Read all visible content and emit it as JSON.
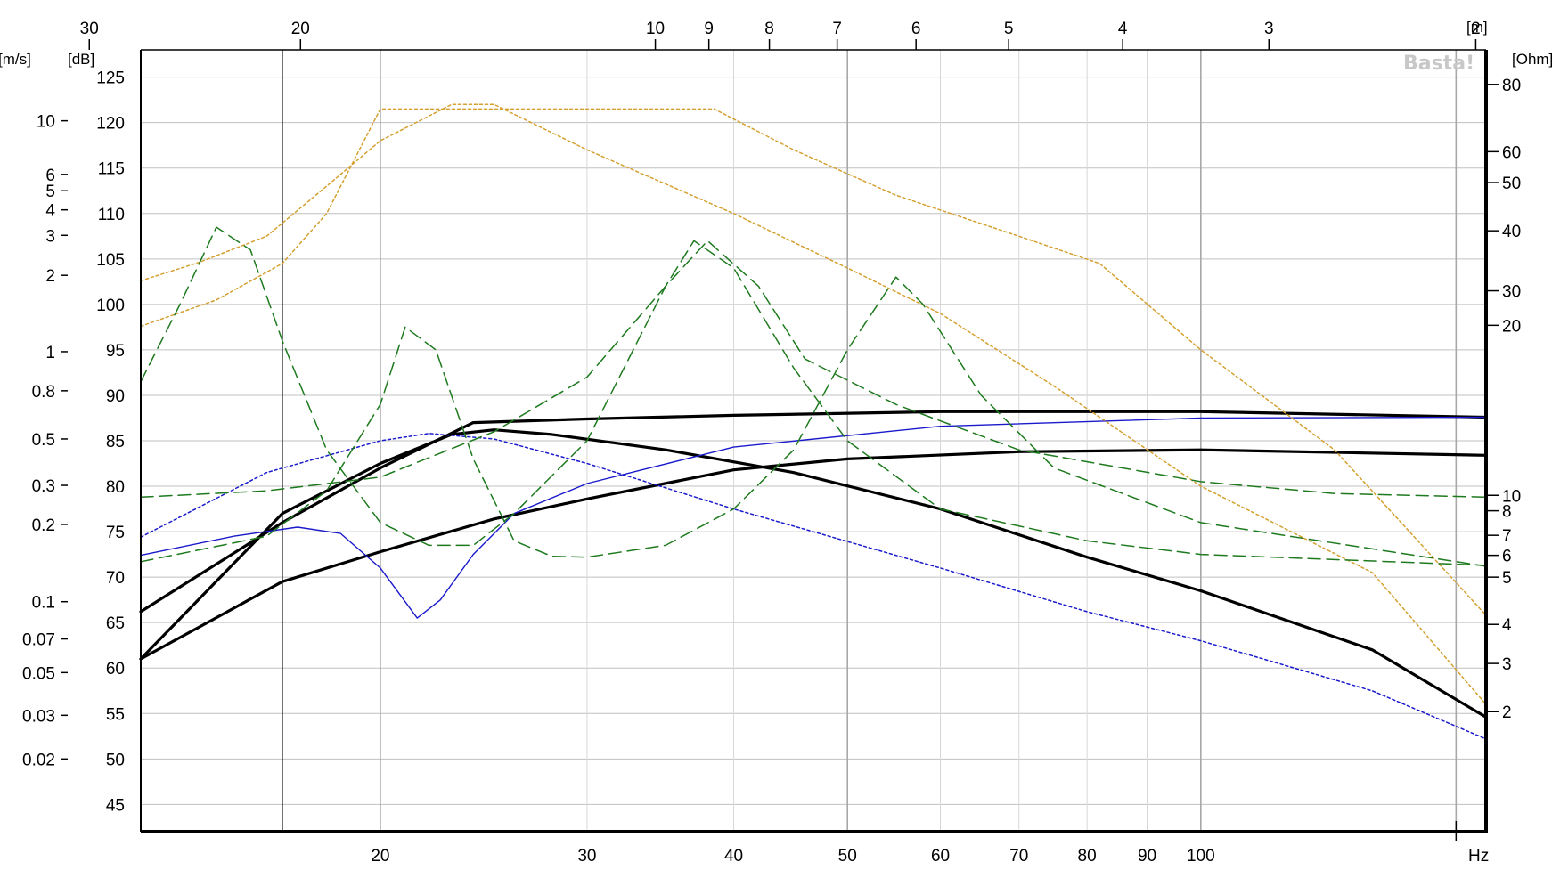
{
  "chart_data": {
    "type": "line",
    "title": "",
    "watermark": "Basta!",
    "x_axis": {
      "scale": "log",
      "range_hz": [
        12.5,
        175
      ],
      "unit_label": "Hz",
      "ticks": [
        20,
        30,
        40,
        50,
        60,
        70,
        80,
        90,
        100
      ],
      "tick_labels": [
        "20",
        "30",
        "40",
        "50",
        "60",
        "70",
        "80",
        "90",
        "100"
      ],
      "major_gridlines": [
        20,
        50,
        100,
        165
      ],
      "minor_gridlines": [
        30,
        40,
        60,
        70,
        80,
        90
      ]
    },
    "wavelength_axis": {
      "unit_label": "[m]",
      "tick_labels": [
        "30",
        "20",
        "10",
        "9",
        "8",
        "7",
        "6",
        "5",
        "4",
        "3",
        "2"
      ],
      "tick_freqs_hz": [
        11.3,
        17.1,
        34.3,
        38.1,
        42.9,
        49.0,
        57.2,
        68.6,
        85.8,
        114.3,
        171.5
      ]
    },
    "y_axis_db": {
      "unit_label": "[dB]",
      "range": [
        42,
        128
      ],
      "ticks": [
        45,
        50,
        55,
        60,
        65,
        70,
        75,
        80,
        85,
        90,
        95,
        100,
        105,
        110,
        115,
        120,
        125
      ],
      "tick_labels": [
        "45",
        "50",
        "55",
        "60",
        "65",
        "70",
        "75",
        "80",
        "85",
        "90",
        "95",
        "100",
        "105",
        "110",
        "115",
        "120",
        "125"
      ]
    },
    "y_axis_velocity": {
      "unit_label": "[m/s]",
      "scale": "log",
      "labeled_ticks": [
        0.02,
        0.03,
        0.05,
        0.07,
        0.1,
        0.2,
        0.3,
        0.5,
        0.8,
        1,
        2,
        3,
        4,
        5,
        6,
        10
      ],
      "tick_labels": [
        "0.02",
        "0.03",
        "0.05",
        "0.07",
        "0.1",
        "0.2",
        "0.3",
        "0.5",
        "0.8",
        "1",
        "2",
        "3",
        "4",
        "5",
        "6",
        "10"
      ],
      "tick_y_db": [
        50,
        54.8,
        59.5,
        63.2,
        67.3,
        75.8,
        80.1,
        85.2,
        90.5,
        94.8,
        103.2,
        107.6,
        110.4,
        112.5,
        114.3,
        120.2
      ]
    },
    "y_axis_impedance": {
      "unit_label": "[Ohm]",
      "scale": "log",
      "labeled_ticks": [
        2,
        3,
        4,
        5,
        6,
        7,
        8,
        10,
        20,
        30,
        40,
        50,
        60,
        80
      ],
      "tick_labels": [
        "2",
        "3",
        "4",
        "5",
        "6",
        "7",
        "8",
        "10",
        "20",
        "30",
        "40",
        "50",
        "60",
        "80"
      ],
      "tick_y_db": [
        55.2,
        60.5,
        64.8,
        70.0,
        72.4,
        74.6,
        77.3,
        79.0,
        97.7,
        101.5,
        108.1,
        113.4,
        116.8,
        124.2
      ]
    },
    "cursor_line_hz": 16.5,
    "series": [
      {
        "id": "spl-thick-a",
        "color": "#000000",
        "style": "solid-thick",
        "points": [
          [
            12.5,
            66.2
          ],
          [
            16.5,
            76
          ],
          [
            20,
            82
          ],
          [
            24,
            87
          ],
          [
            30,
            87.4
          ],
          [
            40,
            87.8
          ],
          [
            60,
            88.2
          ],
          [
            100,
            88.2
          ],
          [
            175,
            87.6
          ]
        ]
      },
      {
        "id": "spl-thick-b",
        "color": "#000000",
        "style": "solid-thick",
        "points": [
          [
            12.5,
            61
          ],
          [
            16.5,
            77
          ],
          [
            20,
            82.5
          ],
          [
            23,
            85.7
          ],
          [
            25,
            86.2
          ],
          [
            28,
            85.7
          ],
          [
            35,
            84
          ],
          [
            45,
            81.5
          ],
          [
            60,
            77.5
          ],
          [
            80,
            72.2
          ],
          [
            100,
            68.5
          ],
          [
            140,
            62
          ],
          [
            175,
            54.6
          ]
        ]
      },
      {
        "id": "spl-thick-c",
        "color": "#000000",
        "style": "solid-thick",
        "points": [
          [
            12.5,
            61
          ],
          [
            16.5,
            69.5
          ],
          [
            20,
            72.8
          ],
          [
            25,
            76.4
          ],
          [
            30,
            78.6
          ],
          [
            40,
            81.8
          ],
          [
            50,
            83
          ],
          [
            70,
            83.8
          ],
          [
            100,
            84
          ],
          [
            175,
            83.4
          ]
        ]
      },
      {
        "id": "spl-blue-solid",
        "color": "#1a1acc",
        "style": "solid-thin",
        "points": [
          [
            12.5,
            72.4
          ],
          [
            15,
            74.5
          ],
          [
            17,
            75.5
          ],
          [
            18.5,
            74.8
          ],
          [
            20,
            71
          ],
          [
            21.5,
            65.5
          ],
          [
            22.5,
            67.5
          ],
          [
            24,
            72.5
          ],
          [
            26,
            77
          ],
          [
            30,
            80.3
          ],
          [
            40,
            84.3
          ],
          [
            60,
            86.6
          ],
          [
            100,
            87.5
          ],
          [
            175,
            87.6
          ]
        ]
      },
      {
        "id": "spl-blue-dotted",
        "color": "#1a1acc",
        "style": "dotted",
        "points": [
          [
            12.5,
            74.4
          ],
          [
            16,
            81.5
          ],
          [
            20,
            85
          ],
          [
            22,
            85.8
          ],
          [
            25,
            85.2
          ],
          [
            30,
            82.5
          ],
          [
            40,
            77.5
          ],
          [
            60,
            71
          ],
          [
            80,
            66.2
          ],
          [
            100,
            63
          ],
          [
            140,
            57.5
          ],
          [
            175,
            52.2
          ]
        ]
      },
      {
        "id": "excursion-orange-a",
        "color": "#d4a030",
        "style": "dotted",
        "points": [
          [
            12.5,
            102.6
          ],
          [
            14,
            104.6
          ],
          [
            16,
            107.5
          ],
          [
            18,
            113
          ],
          [
            20,
            118
          ],
          [
            23,
            122
          ],
          [
            25,
            122
          ],
          [
            30,
            117
          ],
          [
            40,
            110
          ],
          [
            50,
            104
          ],
          [
            60,
            99
          ],
          [
            75,
            91
          ],
          [
            100,
            80
          ],
          [
            140,
            70.5
          ],
          [
            175,
            56
          ]
        ]
      },
      {
        "id": "excursion-orange-b",
        "color": "#d4a030",
        "style": "dotted",
        "points": [
          [
            12.5,
            97.6
          ],
          [
            14.5,
            100.5
          ],
          [
            16.5,
            104.5
          ],
          [
            18,
            110
          ],
          [
            20,
            121.5
          ],
          [
            25,
            121.5
          ],
          [
            38.5,
            121.5
          ],
          [
            45,
            117
          ],
          [
            55,
            112
          ],
          [
            70,
            107.5
          ],
          [
            82,
            104.5
          ],
          [
            100,
            95
          ],
          [
            130,
            84
          ],
          [
            175,
            65.8
          ]
        ]
      },
      {
        "id": "impedance-green-a",
        "color": "#1e7a1e",
        "style": "dashed",
        "points": [
          [
            12.5,
            91.5
          ],
          [
            13.5,
            100
          ],
          [
            14.5,
            108.5
          ],
          [
            15.5,
            106
          ],
          [
            16.5,
            96
          ],
          [
            18,
            84
          ],
          [
            20,
            76
          ],
          [
            22,
            73.5
          ],
          [
            24,
            73.5
          ],
          [
            26,
            77
          ],
          [
            30,
            85
          ],
          [
            35,
            102
          ],
          [
            37,
            107
          ],
          [
            40,
            104
          ],
          [
            45,
            93
          ],
          [
            50,
            85
          ],
          [
            60,
            77.5
          ],
          [
            80,
            74
          ],
          [
            100,
            72.5
          ],
          [
            175,
            71.3
          ]
        ]
      },
      {
        "id": "impedance-green-b",
        "color": "#1e7a1e",
        "style": "dashed",
        "points": [
          [
            12.5,
            71.7
          ],
          [
            16,
            74.5
          ],
          [
            18,
            79.5
          ],
          [
            20,
            89
          ],
          [
            21,
            97.5
          ],
          [
            22.3,
            95
          ],
          [
            24,
            83
          ],
          [
            26,
            74
          ],
          [
            28,
            72.3
          ],
          [
            30,
            72.2
          ],
          [
            35,
            73.5
          ],
          [
            40,
            77.5
          ],
          [
            45,
            84
          ],
          [
            50,
            95
          ],
          [
            55,
            103
          ],
          [
            58,
            100
          ],
          [
            65,
            90
          ],
          [
            75,
            82
          ],
          [
            100,
            76
          ],
          [
            175,
            71.2
          ]
        ]
      },
      {
        "id": "impedance-green-c",
        "color": "#1e7a1e",
        "style": "dashed",
        "points": [
          [
            12.5,
            78.8
          ],
          [
            16,
            79.5
          ],
          [
            20,
            81
          ],
          [
            25,
            86
          ],
          [
            30,
            92
          ],
          [
            35,
            102
          ],
          [
            38,
            107
          ],
          [
            42,
            102
          ],
          [
            46,
            94
          ],
          [
            55,
            89
          ],
          [
            70,
            84
          ],
          [
            100,
            80.5
          ],
          [
            130,
            79.2
          ],
          [
            175,
            78.8
          ]
        ]
      }
    ]
  }
}
